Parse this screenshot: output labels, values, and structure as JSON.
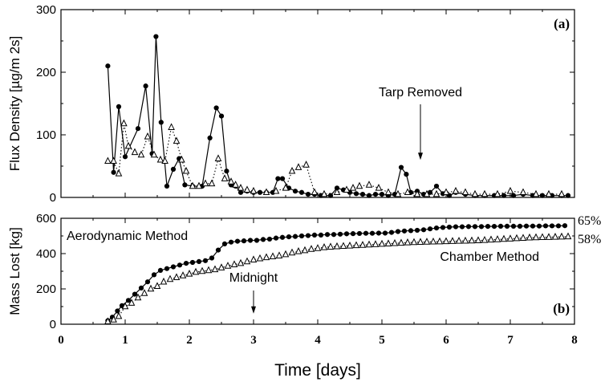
{
  "chart_data": [
    {
      "type": "line",
      "panel_label": "(a)",
      "ylabel": "Flux Density [µg/m  2s]",
      "xlim": [
        0,
        8
      ],
      "ylim": [
        0,
        300
      ],
      "yticks": [
        "0",
        "100",
        "200",
        "300"
      ],
      "series": [
        {
          "marker": "filled-circle",
          "line": "solid",
          "x": [
            0.73,
            0.82,
            0.9,
            1.0,
            1.2,
            1.32,
            1.42,
            1.48,
            1.56,
            1.65,
            1.75,
            1.84,
            1.93,
            2.05,
            2.2,
            2.32,
            2.42,
            2.5,
            2.58,
            2.65,
            2.72,
            2.8,
            2.9,
            3.0,
            3.1,
            3.2,
            3.3,
            3.38,
            3.45,
            3.55,
            3.65,
            3.75,
            3.85,
            3.95,
            4.05,
            4.2,
            4.3,
            4.4,
            4.5,
            4.6,
            4.7,
            4.8,
            4.9,
            5.0,
            5.1,
            5.2,
            5.3,
            5.38,
            5.45,
            5.55,
            5.65,
            5.75,
            5.85,
            5.95,
            6.05,
            6.15,
            6.3,
            6.45,
            6.6,
            6.75,
            6.9,
            7.05,
            7.2,
            7.35,
            7.5,
            7.65,
            7.8,
            7.9
          ],
          "y": [
            210,
            40,
            145,
            65,
            110,
            178,
            70,
            257,
            120,
            18,
            45,
            62,
            20,
            18,
            18,
            95,
            143,
            130,
            42,
            20,
            18,
            8,
            10,
            8,
            8,
            8,
            8,
            30,
            30,
            15,
            10,
            8,
            5,
            5,
            3,
            3,
            15,
            12,
            8,
            6,
            5,
            3,
            5,
            5,
            3,
            5,
            48,
            37,
            8,
            10,
            5,
            8,
            18,
            6,
            3,
            8,
            5,
            3,
            3,
            3,
            3,
            3,
            5,
            3,
            3,
            3,
            3,
            3
          ]
        },
        {
          "marker": "open-triangle",
          "line": "dotted",
          "x": [
            0.73,
            0.82,
            0.9,
            0.98,
            1.05,
            1.15,
            1.25,
            1.35,
            1.45,
            1.55,
            1.62,
            1.72,
            1.8,
            1.88,
            1.95,
            2.05,
            2.15,
            2.25,
            2.35,
            2.45,
            2.55,
            2.65,
            2.72,
            2.8,
            2.9,
            3.0,
            3.2,
            3.35,
            3.5,
            3.6,
            3.7,
            3.82,
            3.95,
            4.1,
            4.3,
            4.45,
            4.55,
            4.65,
            4.8,
            4.95,
            5.1,
            5.25,
            5.4,
            5.55,
            5.7,
            5.85,
            6.0,
            6.15,
            6.3,
            6.45,
            6.6,
            6.8,
            7.0,
            7.2,
            7.4,
            7.6,
            7.8
          ],
          "y": [
            58,
            58,
            38,
            118,
            82,
            72,
            68,
            97,
            68,
            60,
            58,
            112,
            90,
            60,
            42,
            18,
            18,
            22,
            22,
            62,
            30,
            25,
            20,
            15,
            12,
            10,
            8,
            10,
            15,
            42,
            48,
            52,
            8,
            5,
            8,
            12,
            15,
            18,
            20,
            15,
            8,
            5,
            8,
            5,
            5,
            5,
            8,
            10,
            8,
            5,
            5,
            5,
            10,
            8,
            5,
            5,
            5
          ]
        }
      ],
      "annotations": [
        {
          "text": "Tarp Removed",
          "arrow_at": {
            "x": 5.6,
            "y": 60
          }
        }
      ]
    },
    {
      "type": "line",
      "panel_label": "(b)",
      "ylabel": "Mass Lost [kg]",
      "xlabel": "Time [days]",
      "xlim": [
        0,
        8
      ],
      "ylim": [
        0,
        600
      ],
      "yticks": [
        "0",
        "200",
        "400",
        "600"
      ],
      "xticks": [
        "0",
        "1",
        "2",
        "3",
        "4",
        "5",
        "6",
        "7",
        "8"
      ],
      "series": [
        {
          "name": "Aerodynamic Method",
          "marker": "filled-circle",
          "line": "solid",
          "end_label": "65%",
          "x": [
            0.73,
            0.8,
            0.88,
            0.95,
            1.05,
            1.15,
            1.25,
            1.35,
            1.45,
            1.55,
            1.65,
            1.75,
            1.85,
            1.95,
            2.05,
            2.15,
            2.25,
            2.35,
            2.45,
            2.55,
            2.65,
            2.75,
            2.85,
            2.95,
            3.05,
            3.15,
            3.25,
            3.35,
            3.45,
            3.55,
            3.65,
            3.75,
            3.85,
            3.95,
            4.05,
            4.15,
            4.25,
            4.35,
            4.45,
            4.55,
            4.65,
            4.75,
            4.85,
            4.95,
            5.05,
            5.15,
            5.25,
            5.35,
            5.45,
            5.55,
            5.65,
            5.75,
            5.85,
            5.95,
            6.05,
            6.15,
            6.25,
            6.35,
            6.45,
            6.55,
            6.65,
            6.75,
            6.85,
            6.95,
            7.05,
            7.15,
            7.25,
            7.35,
            7.45,
            7.55,
            7.65,
            7.75,
            7.85
          ],
          "y": [
            20,
            40,
            75,
            105,
            135,
            170,
            205,
            240,
            280,
            305,
            315,
            325,
            335,
            345,
            350,
            355,
            360,
            375,
            420,
            455,
            465,
            470,
            472,
            475,
            475,
            480,
            482,
            488,
            492,
            495,
            497,
            500,
            502,
            505,
            505,
            508,
            508,
            510,
            512,
            513,
            514,
            515,
            515,
            516,
            516,
            520,
            525,
            528,
            530,
            532,
            535,
            540,
            545,
            548,
            550,
            552,
            552,
            553,
            553,
            553,
            554,
            554,
            555,
            555,
            555,
            555,
            556,
            556,
            556,
            557,
            557,
            557,
            558
          ]
        },
        {
          "name": "Chamber Method",
          "marker": "open-triangle",
          "line": "dotted",
          "end_label": "58%",
          "x": [
            0.73,
            0.82,
            0.9,
            1.0,
            1.1,
            1.2,
            1.3,
            1.4,
            1.5,
            1.6,
            1.7,
            1.8,
            1.9,
            2.0,
            2.1,
            2.2,
            2.3,
            2.4,
            2.5,
            2.6,
            2.7,
            2.8,
            2.9,
            3.0,
            3.1,
            3.2,
            3.3,
            3.4,
            3.5,
            3.6,
            3.7,
            3.8,
            3.9,
            4.0,
            4.1,
            4.2,
            4.3,
            4.4,
            4.5,
            4.6,
            4.7,
            4.8,
            4.9,
            5.0,
            5.1,
            5.2,
            5.3,
            5.4,
            5.5,
            5.6,
            5.7,
            5.8,
            5.9,
            6.0,
            6.1,
            6.2,
            6.3,
            6.4,
            6.5,
            6.6,
            6.7,
            6.8,
            6.9,
            7.0,
            7.1,
            7.2,
            7.3,
            7.4,
            7.5,
            7.6,
            7.7,
            7.8,
            7.9
          ],
          "y": [
            15,
            25,
            45,
            100,
            120,
            150,
            175,
            200,
            215,
            240,
            255,
            265,
            275,
            285,
            295,
            300,
            305,
            310,
            320,
            330,
            338,
            345,
            355,
            365,
            372,
            378,
            383,
            388,
            395,
            405,
            412,
            418,
            425,
            430,
            435,
            438,
            440,
            442,
            444,
            446,
            448,
            450,
            452,
            454,
            456,
            458,
            460,
            462,
            464,
            465,
            466,
            467,
            468,
            469,
            470,
            471,
            472,
            473,
            474,
            476,
            478,
            480,
            482,
            484,
            486,
            488,
            490,
            491,
            492,
            493,
            494,
            495,
            496
          ]
        }
      ],
      "annotations": [
        {
          "text": "Midnight",
          "arrow_at": {
            "x": 3.0,
            "y": 60
          }
        }
      ]
    }
  ]
}
